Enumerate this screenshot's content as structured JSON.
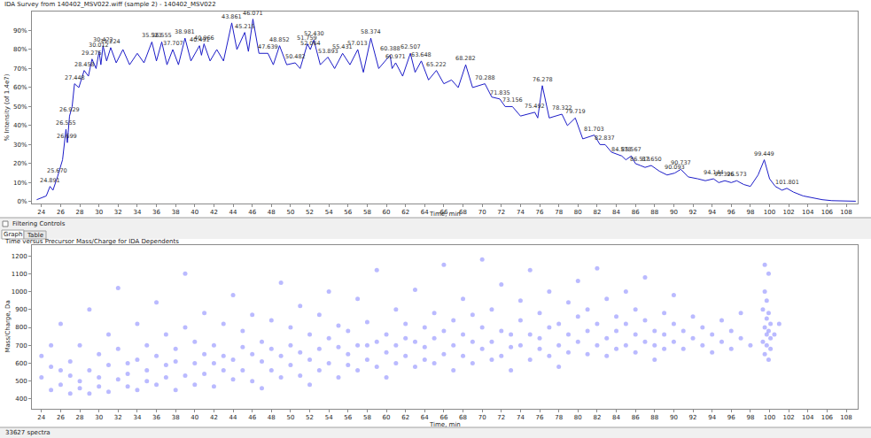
{
  "panel": {
    "filtering_controls": "Filtering Controls",
    "tabs": [
      "Graph",
      "Table"
    ]
  },
  "status_bar": "33627 spectra",
  "chart_data": [
    {
      "type": "line",
      "title": "IDA Survey from 140402_MSV022.wiff (sample 2) - 140402_MSV022",
      "xlabel": "Time, min",
      "ylabel": "% Intensity (of 1.4e7)",
      "color": "#1c1cc8",
      "grid": false,
      "xlim": [
        23,
        109.2
      ],
      "ylim": [
        -1,
        100
      ],
      "xticks": [
        24,
        26,
        28,
        30,
        32,
        34,
        36,
        38,
        40,
        42,
        44,
        46,
        48,
        50,
        52,
        54,
        56,
        58,
        60,
        62,
        64,
        66,
        68,
        70,
        72,
        74,
        76,
        78,
        80,
        82,
        84,
        86,
        88,
        90,
        92,
        94,
        96,
        98,
        100,
        102,
        104,
        106,
        108
      ],
      "yticks": [
        {
          "value": 0,
          "label": "0%"
        },
        {
          "value": 10,
          "label": "10%"
        },
        {
          "value": 20,
          "label": "20%"
        },
        {
          "value": 30,
          "label": "30%"
        },
        {
          "value": 40,
          "label": "40%"
        },
        {
          "value": 50,
          "label": "50%"
        },
        {
          "value": 60,
          "label": "60%"
        },
        {
          "value": 70,
          "label": "70%"
        },
        {
          "value": 80,
          "label": "80%"
        },
        {
          "value": 90,
          "label": "90%"
        }
      ],
      "x": [
        23.5,
        24.5,
        24.891,
        25.2,
        25.67,
        26.2,
        26.555,
        26.699,
        26.929,
        27.2,
        27.448,
        27.9,
        28.458,
        28.9,
        29.275,
        29.7,
        30.012,
        30.2,
        30.422,
        30.8,
        31.224,
        31.8,
        32.5,
        33.2,
        34.0,
        34.7,
        35.523,
        36.0,
        36.555,
        37.1,
        37.707,
        38.3,
        38.981,
        39.6,
        40.491,
        40.7,
        40.966,
        41.6,
        42.3,
        43.0,
        43.861,
        44.4,
        45.215,
        45.6,
        46.071,
        46.7,
        47.639,
        48.2,
        48.852,
        49.6,
        50.482,
        51.0,
        51.759,
        52.064,
        52.43,
        53.1,
        53.893,
        54.6,
        55.431,
        56.2,
        57.013,
        57.6,
        58.374,
        59.2,
        60.388,
        60.6,
        60.971,
        61.7,
        62.507,
        63.0,
        63.648,
        64.4,
        65.222,
        66.0,
        66.8,
        67.5,
        68.282,
        69.0,
        70.288,
        71.0,
        71.835,
        72.4,
        73.156,
        74.0,
        75.492,
        75.8,
        76.278,
        77.0,
        78.322,
        78.9,
        79.719,
        80.5,
        81.703,
        82.3,
        82.837,
        83.5,
        84.578,
        85.0,
        85.567,
        86.0,
        86.513,
        87.0,
        87.65,
        88.5,
        89.3,
        90.093,
        90.737,
        91.5,
        92.5,
        93.3,
        94.144,
        94.7,
        95.326,
        96.0,
        96.573,
        97.3,
        98.0,
        98.8,
        99.449,
        100.0,
        100.6,
        101.3,
        101.801,
        102.5,
        103.5,
        104.5,
        105.5,
        106.5,
        108,
        109
      ],
      "values": [
        1,
        3,
        8,
        6,
        13,
        22,
        38,
        31,
        45,
        50,
        62,
        60,
        69,
        66,
        75,
        70,
        79,
        72,
        82,
        74,
        81,
        73,
        80,
        72,
        78,
        73,
        84,
        74,
        84,
        72,
        80,
        72,
        86,
        74,
        82,
        77,
        83,
        74,
        80,
        74,
        94,
        80,
        89,
        79,
        96,
        78,
        78,
        72,
        82,
        72,
        73,
        70,
        83,
        80,
        85,
        72,
        76,
        70,
        78,
        72,
        80,
        68,
        86,
        70,
        77,
        70,
        73,
        66,
        78,
        68,
        74,
        64,
        69,
        62,
        64,
        60,
        72,
        60,
        62,
        55,
        54,
        50,
        50,
        45,
        47,
        44,
        61,
        44,
        46,
        40,
        44,
        33,
        35,
        30,
        30,
        26,
        24,
        22,
        24,
        20,
        19,
        18,
        19,
        16,
        14,
        15,
        17,
        13,
        12,
        11,
        12,
        10,
        11,
        10,
        11,
        9,
        8,
        14,
        22,
        12,
        8,
        6,
        7,
        5,
        3,
        2,
        1,
        0.5,
        0.3,
        0.2
      ],
      "peak_labels": [
        {
          "x": 24.891,
          "y": 8,
          "label": "24.891"
        },
        {
          "x": 25.67,
          "y": 13,
          "label": "25.670"
        },
        {
          "x": 26.555,
          "y": 38,
          "label": "26.555"
        },
        {
          "x": 26.699,
          "y": 31,
          "label": "26.699"
        },
        {
          "x": 26.929,
          "y": 45,
          "label": "26.929"
        },
        {
          "x": 27.448,
          "y": 62,
          "label": "27.448"
        },
        {
          "x": 28.458,
          "y": 69,
          "label": "28.458"
        },
        {
          "x": 29.275,
          "y": 75,
          "label": "29.275"
        },
        {
          "x": 30.012,
          "y": 79,
          "label": "30.012"
        },
        {
          "x": 30.422,
          "y": 82,
          "label": "30.422"
        },
        {
          "x": 31.224,
          "y": 81,
          "label": "31.224"
        },
        {
          "x": 35.523,
          "y": 84,
          "label": "35.523"
        },
        {
          "x": 36.555,
          "y": 84,
          "label": "36.555"
        },
        {
          "x": 37.707,
          "y": 80,
          "label": "37.707"
        },
        {
          "x": 38.981,
          "y": 86,
          "label": "38.981"
        },
        {
          "x": 40.491,
          "y": 82,
          "label": "40.491"
        },
        {
          "x": 40.966,
          "y": 83,
          "label": "40.966"
        },
        {
          "x": 43.861,
          "y": 94,
          "label": "43.861"
        },
        {
          "x": 45.215,
          "y": 89,
          "label": "45.215"
        },
        {
          "x": 46.071,
          "y": 96,
          "label": "46.071"
        },
        {
          "x": 47.639,
          "y": 78,
          "label": "47.639"
        },
        {
          "x": 48.852,
          "y": 82,
          "label": "48.852"
        },
        {
          "x": 50.482,
          "y": 73,
          "label": "50.482"
        },
        {
          "x": 51.759,
          "y": 83,
          "label": "51.759"
        },
        {
          "x": 52.064,
          "y": 80,
          "label": "52.064"
        },
        {
          "x": 52.43,
          "y": 85,
          "label": "52.430"
        },
        {
          "x": 53.893,
          "y": 76,
          "label": "53.893"
        },
        {
          "x": 55.431,
          "y": 78,
          "label": "55.431"
        },
        {
          "x": 57.013,
          "y": 80,
          "label": "57.013"
        },
        {
          "x": 58.374,
          "y": 86,
          "label": "58.374"
        },
        {
          "x": 60.388,
          "y": 77,
          "label": "60.388"
        },
        {
          "x": 60.971,
          "y": 73,
          "label": "60.971"
        },
        {
          "x": 62.507,
          "y": 78,
          "label": "62.507"
        },
        {
          "x": 63.648,
          "y": 74,
          "label": "63.648"
        },
        {
          "x": 65.222,
          "y": 69,
          "label": "65.222"
        },
        {
          "x": 68.282,
          "y": 72,
          "label": "68.282"
        },
        {
          "x": 70.288,
          "y": 62,
          "label": "70.288"
        },
        {
          "x": 71.835,
          "y": 54,
          "label": "71.835"
        },
        {
          "x": 73.156,
          "y": 50,
          "label": "73.156"
        },
        {
          "x": 75.492,
          "y": 47,
          "label": "75.492"
        },
        {
          "x": 76.278,
          "y": 61,
          "label": "76.278"
        },
        {
          "x": 78.322,
          "y": 46,
          "label": "78.322"
        },
        {
          "x": 79.719,
          "y": 44,
          "label": "79.719"
        },
        {
          "x": 81.703,
          "y": 35,
          "label": "81.703"
        },
        {
          "x": 82.837,
          "y": 30,
          "label": "82.837"
        },
        {
          "x": 84.578,
          "y": 24,
          "label": "84.578"
        },
        {
          "x": 85.567,
          "y": 24,
          "label": "85.567"
        },
        {
          "x": 86.513,
          "y": 19,
          "label": "86.513"
        },
        {
          "x": 87.65,
          "y": 19,
          "label": "87.650"
        },
        {
          "x": 90.093,
          "y": 15,
          "label": "90.093"
        },
        {
          "x": 90.737,
          "y": 17,
          "label": "90.737"
        },
        {
          "x": 94.144,
          "y": 12,
          "label": "94.144"
        },
        {
          "x": 95.326,
          "y": 11,
          "label": "95.326"
        },
        {
          "x": 96.573,
          "y": 11,
          "label": "96.573"
        },
        {
          "x": 99.449,
          "y": 22,
          "label": "99.449"
        },
        {
          "x": 101.801,
          "y": 7,
          "label": "101.801"
        }
      ]
    },
    {
      "type": "scatter",
      "title": "Time versus Precursor Mass/Charge for IDA Dependents",
      "xlabel": "Time, min",
      "ylabel": "Mass/Charge, Da",
      "color": "#3a3aff",
      "marker": "circle",
      "grid": false,
      "xlim": [
        23,
        109.2
      ],
      "ylim": [
        345,
        1260
      ],
      "xticks": [
        24,
        26,
        28,
        30,
        32,
        34,
        36,
        38,
        40,
        42,
        44,
        46,
        48,
        50,
        52,
        54,
        56,
        58,
        60,
        62,
        64,
        66,
        68,
        70,
        72,
        74,
        76,
        78,
        80,
        82,
        84,
        86,
        88,
        90,
        92,
        94,
        96,
        98,
        100,
        102,
        104,
        106,
        108
      ],
      "yticks": [
        400,
        500,
        600,
        700,
        800,
        900,
        1000,
        1100,
        1200
      ],
      "x": [
        24,
        24,
        25,
        25,
        25,
        26,
        26,
        26,
        27,
        27,
        27,
        28,
        28,
        28,
        29,
        29,
        29,
        30,
        30,
        30,
        31,
        31,
        31,
        32,
        32,
        32,
        33,
        33,
        33,
        34,
        34,
        34,
        35,
        35,
        35,
        36,
        36,
        36,
        37,
        37,
        37,
        38,
        38,
        38,
        39,
        39,
        39,
        40,
        40,
        40,
        41,
        41,
        41,
        42,
        42,
        42,
        43,
        43,
        43,
        44,
        44,
        44,
        45,
        45,
        45,
        46,
        46,
        46,
        47,
        47,
        47,
        48,
        48,
        48,
        49,
        49,
        49,
        50,
        50,
        50,
        51,
        51,
        51,
        52,
        52,
        52,
        53,
        53,
        53,
        54,
        54,
        54,
        55,
        55,
        55,
        56,
        56,
        56,
        57,
        57,
        57,
        58,
        58,
        58,
        59,
        59,
        59,
        60,
        60,
        60,
        61,
        61,
        61,
        62,
        62,
        62,
        63,
        63,
        63,
        64,
        64,
        64,
        65,
        65,
        65,
        66,
        66,
        66,
        67,
        67,
        67,
        68,
        68,
        68,
        69,
        69,
        69,
        70,
        70,
        70,
        71,
        71,
        71,
        72,
        72,
        72,
        73,
        73,
        73,
        74,
        74,
        74,
        75,
        75,
        75,
        76,
        76,
        76,
        77,
        77,
        77,
        78,
        78,
        78,
        79,
        79,
        79,
        80,
        80,
        80,
        81,
        81,
        81,
        82,
        82,
        82,
        83,
        83,
        83,
        84,
        84,
        84,
        85,
        85,
        85,
        86,
        86,
        86,
        87,
        87,
        87,
        88,
        88,
        88,
        89,
        89,
        89,
        90,
        90,
        90,
        91,
        91,
        92,
        92,
        93,
        93,
        94,
        94,
        95,
        95,
        96,
        96,
        97,
        97,
        98,
        99.3,
        99.3,
        99.5,
        99.5,
        99.5,
        99.5,
        99.7,
        99.7,
        99.7,
        99.7,
        99.9,
        99.9,
        99.9,
        99.9,
        100.1,
        100.1,
        100.1,
        100.5,
        101
      ],
      "values": [
        520,
        640,
        450,
        580,
        700,
        480,
        560,
        820,
        430,
        610,
        530,
        500,
        700,
        460,
        560,
        430,
        900,
        520,
        650,
        470,
        590,
        440,
        760,
        510,
        680,
        1020,
        470,
        600,
        540,
        620,
        450,
        820,
        560,
        700,
        500,
        480,
        640,
        940,
        590,
        520,
        760,
        450,
        680,
        610,
        530,
        800,
        1100,
        600,
        480,
        720,
        650,
        540,
        880,
        470,
        700,
        600,
        560,
        820,
        640,
        620,
        510,
        980,
        690,
        560,
        780,
        500,
        650,
        870,
        610,
        720,
        460,
        560,
        840,
        680,
        640,
        520,
        1050,
        700,
        590,
        800,
        530,
        660,
        920,
        620,
        760,
        480,
        680,
        560,
        870,
        600,
        740,
        1000,
        520,
        690,
        810,
        650,
        780,
        590,
        700,
        560,
        960,
        620,
        830,
        700,
        580,
        720,
        1120,
        660,
        760,
        520,
        700,
        600,
        900,
        640,
        820,
        740,
        580,
        720,
        1010,
        690,
        800,
        620,
        740,
        600,
        880,
        650,
        780,
        1150,
        700,
        560,
        840,
        760,
        640,
        960,
        600,
        720,
        870,
        680,
        800,
        1180,
        720,
        620,
        900,
        640,
        780,
        1040,
        760,
        690,
        560,
        700,
        840,
        950,
        620,
        760,
        1120,
        740,
        680,
        880,
        800,
        640,
        1000,
        700,
        820,
        580,
        760,
        660,
        940,
        720,
        860,
        1060,
        650,
        780,
        900,
        820,
        700,
        1130,
        740,
        640,
        960,
        780,
        860,
        680,
        700,
        820,
        1000,
        760,
        660,
        900,
        840,
        720,
        1080,
        700,
        780,
        620,
        760,
        880,
        680,
        720,
        820,
        980,
        680,
        780,
        740,
        860,
        700,
        800,
        660,
        760,
        720,
        840,
        780,
        680,
        740,
        880,
        700,
        720,
        900,
        650,
        800,
        1000,
        1150,
        700,
        850,
        950,
        760,
        620,
        780,
        1100,
        880,
        740,
        820,
        680,
        760,
        820
      ]
    }
  ]
}
